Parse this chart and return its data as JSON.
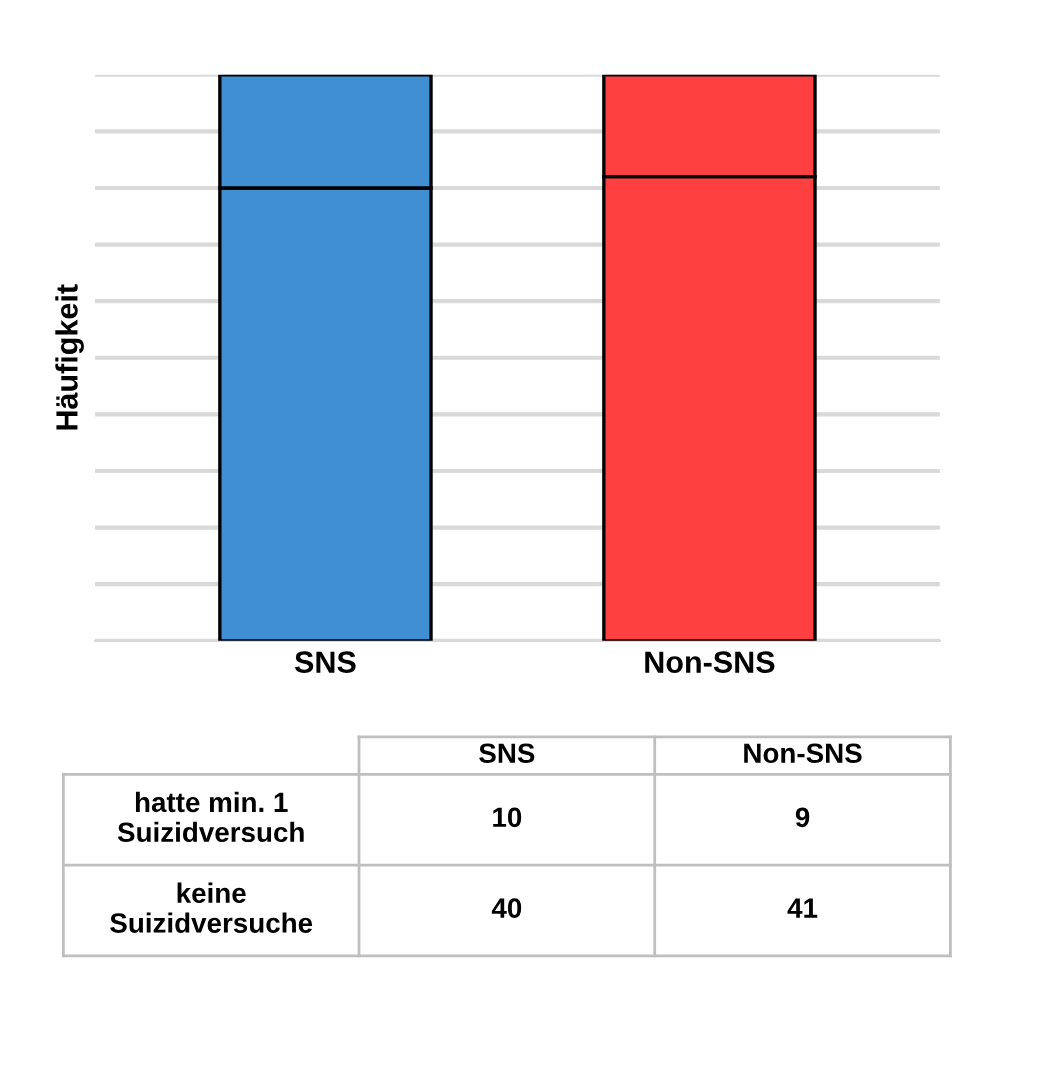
{
  "chart_data": {
    "type": "bar",
    "stacked": true,
    "ylabel": "Häufigkeit",
    "categories": [
      "SNS",
      "Non-SNS"
    ],
    "series": [
      {
        "colors": [
          "#3f8fd2",
          "#ff4040"
        ],
        "values": [
          40,
          41
        ]
      },
      {
        "colors": [
          "#3f8fd2",
          "#ff4040"
        ],
        "values": [
          10,
          9
        ]
      }
    ],
    "annotations": [
      "keine\nSuizidversuche",
      "hatte min. 1\nSuizidversuch"
    ],
    "ylim": [
      0,
      50
    ],
    "yticks": [
      {
        "value": 0,
        "label": null
      },
      {
        "value": 5,
        "label": null
      },
      {
        "value": 10,
        "label": null
      },
      {
        "value": 15,
        "label": null
      },
      {
        "value": 20,
        "label": null
      },
      {
        "value": 25,
        "label": null
      },
      {
        "value": 30,
        "label": null
      },
      {
        "value": 35,
        "label": null
      },
      {
        "value": 40,
        "label": null
      },
      {
        "value": 45,
        "label": null
      },
      {
        "value": 50,
        "label": null
      }
    ],
    "grid": "y",
    "data_labels": true,
    "tick_labels": "x"
  }
}
